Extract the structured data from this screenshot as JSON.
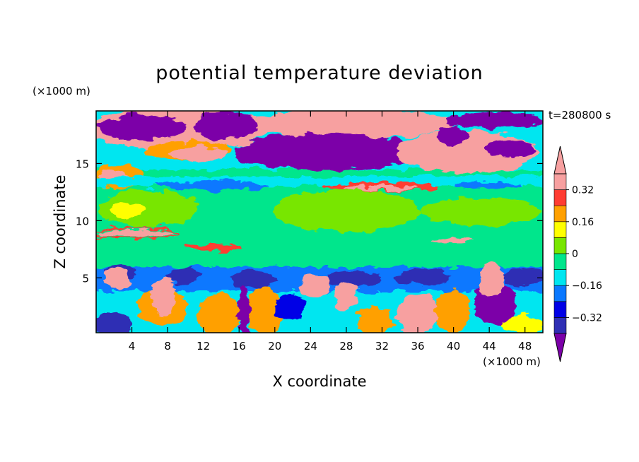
{
  "chart_data": {
    "type": "contour",
    "title": "potential temperature deviation",
    "time_label": "t=280800 s",
    "x_axis": {
      "label": "X coordinate",
      "unit": "(×1000 m)",
      "range": [
        0,
        50
      ],
      "ticks": [
        4,
        8,
        12,
        16,
        20,
        24,
        28,
        32,
        36,
        40,
        44,
        48
      ],
      "tick_labels": [
        "4",
        "8",
        "12",
        "16",
        "20",
        "24",
        "28",
        "32",
        "36",
        "40",
        "44",
        "48"
      ]
    },
    "y_axis": {
      "label": "Z coordinate",
      "unit": "(×1000 m)",
      "range": [
        0.2,
        19.6
      ],
      "ticks": [
        5,
        10,
        15
      ],
      "tick_labels": [
        "5",
        "10",
        "15"
      ]
    },
    "colorbar": {
      "levels": [
        -0.4,
        -0.32,
        -0.24,
        -0.16,
        -0.08,
        0,
        0.08,
        0.16,
        0.24,
        0.32,
        0.4
      ],
      "tick_values": [
        0.32,
        0.16,
        0,
        -0.16,
        -0.32
      ],
      "tick_labels": [
        "0.32",
        "0.16",
        "0",
        "−0.16",
        "−0.32"
      ],
      "colors": [
        "#7b00a8",
        "#2f2fb4",
        "#0000e6",
        "#0a78ff",
        "#00e6f0",
        "#00e68c",
        "#78e600",
        "#ffff00",
        "#ffa000",
        "#ff3c32",
        "#f7a0a0"
      ],
      "extend": "both"
    }
  }
}
